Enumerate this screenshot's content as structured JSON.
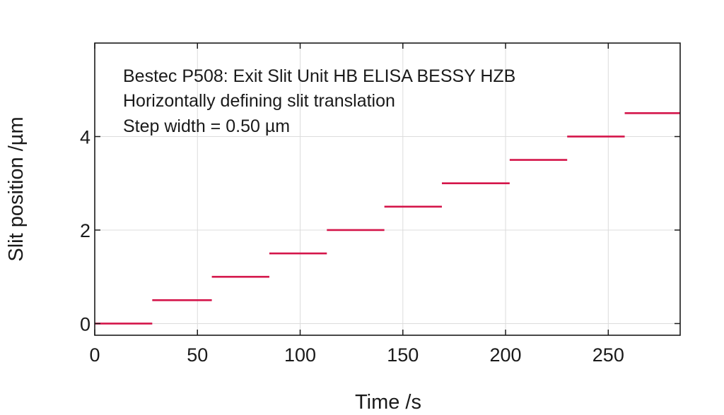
{
  "chart_data": {
    "type": "line",
    "annotations": [
      "Bestec P508: Exit Slit Unit HB ELISA BESSY HZB",
      "Horizontally defining slit translation",
      "Step width = 0.50 µm"
    ],
    "xlabel": "Time /s",
    "ylabel": "Slit position /µm",
    "xlim": [
      0,
      285
    ],
    "ylim": [
      -0.25,
      6.0
    ],
    "xticks": [
      0,
      50,
      100,
      150,
      200,
      250
    ],
    "yticks": [
      0,
      2,
      4
    ],
    "grid": true,
    "series": [
      {
        "color": "#d4154a",
        "segments": [
          {
            "x": [
              0,
              28
            ],
            "y": 0.0
          },
          {
            "x": [
              28,
              57
            ],
            "y": 0.5
          },
          {
            "x": [
              57,
              85
            ],
            "y": 1.0
          },
          {
            "x": [
              85,
              113
            ],
            "y": 1.5
          },
          {
            "x": [
              113,
              141
            ],
            "y": 2.0
          },
          {
            "x": [
              141,
              169
            ],
            "y": 2.5
          },
          {
            "x": [
              169,
              202
            ],
            "y": 3.0
          },
          {
            "x": [
              202,
              230
            ],
            "y": 3.5
          },
          {
            "x": [
              230,
              258
            ],
            "y": 4.0
          },
          {
            "x": [
              258,
              285
            ],
            "y": 4.5
          }
        ]
      }
    ]
  }
}
